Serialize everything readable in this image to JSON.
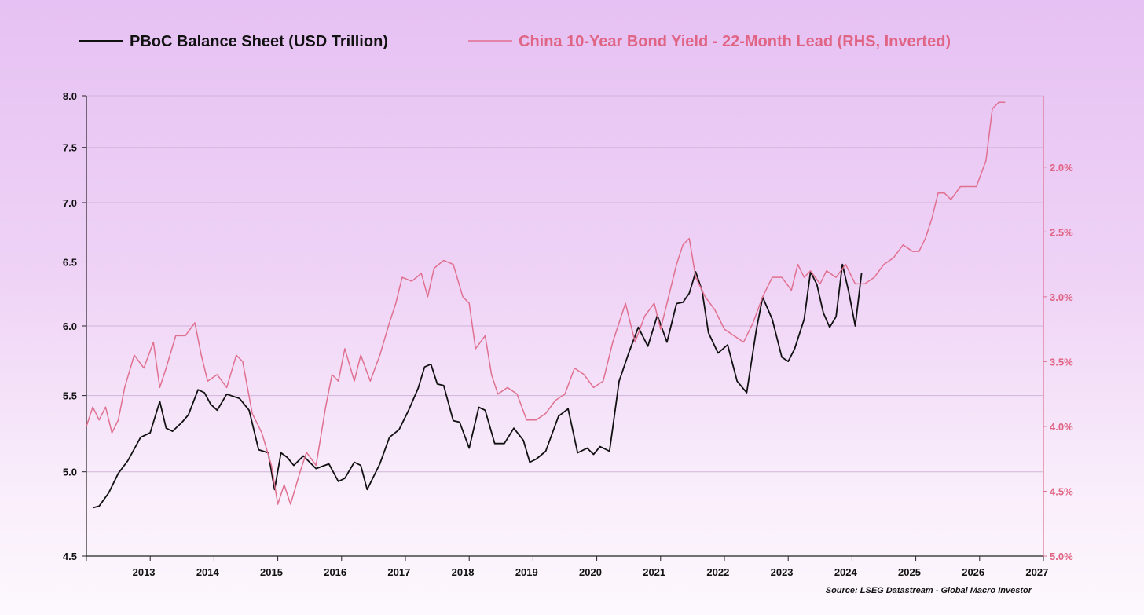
{
  "chart_data": {
    "type": "line",
    "title": "",
    "source": "Source: LSEG Datastream - Global Macro Investor",
    "grid": true,
    "legend_placement": "top",
    "x_axis": {
      "ticks": [
        "2013",
        "2014",
        "2015",
        "2016",
        "2017",
        "2018",
        "2019",
        "2020",
        "2021",
        "2022",
        "2023",
        "2024",
        "2025",
        "2026",
        "2027"
      ],
      "range": [
        2012.6,
        2027.6
      ]
    },
    "y_left": {
      "scale": "log",
      "range": [
        4.5,
        8.0
      ],
      "ticks": [
        "8.0",
        "7.5",
        "7.0",
        "6.5",
        "6.0",
        "5.5",
        "5.0",
        "4.5"
      ],
      "tick_values": [
        8.0,
        7.5,
        7.0,
        6.5,
        6.0,
        5.5,
        5.0,
        4.5
      ]
    },
    "y_right": {
      "inverted": true,
      "range": [
        1.45,
        5.0
      ],
      "ticks": [
        "2.0%",
        "2.5%",
        "3.0%",
        "3.5%",
        "4.0%",
        "4.5%",
        "5.0%"
      ],
      "tick_values": [
        2.0,
        2.5,
        3.0,
        3.5,
        4.0,
        4.5,
        5.0
      ]
    },
    "series": [
      {
        "name": "PBoC Balance Sheet (USD Trillion)",
        "axis": "left",
        "color": "#111111",
        "x": [
          2012.7,
          2012.8,
          2012.95,
          2013.1,
          2013.25,
          2013.45,
          2013.6,
          2013.75,
          2013.85,
          2013.95,
          2014.1,
          2014.2,
          2014.35,
          2014.45,
          2014.55,
          2014.65,
          2014.8,
          2015.0,
          2015.15,
          2015.3,
          2015.45,
          2015.55,
          2015.65,
          2015.75,
          2015.85,
          2016.0,
          2016.2,
          2016.4,
          2016.55,
          2016.65,
          2016.8,
          2016.9,
          2017.0,
          2017.2,
          2017.35,
          2017.5,
          2017.65,
          2017.8,
          2017.9,
          2018.0,
          2018.1,
          2018.2,
          2018.35,
          2018.45,
          2018.6,
          2018.75,
          2018.85,
          2019.0,
          2019.15,
          2019.3,
          2019.45,
          2019.55,
          2019.65,
          2019.8,
          2020.0,
          2020.15,
          2020.3,
          2020.45,
          2020.55,
          2020.65,
          2020.8,
          2020.95,
          2021.1,
          2021.25,
          2021.4,
          2021.55,
          2021.7,
          2021.85,
          2021.95,
          2022.05,
          2022.15,
          2022.25,
          2022.35,
          2022.5,
          2022.65,
          2022.8,
          2022.95,
          2023.1,
          2023.2,
          2023.35,
          2023.5,
          2023.6,
          2023.7,
          2023.85,
          2023.95,
          2024.05,
          2024.15,
          2024.25,
          2024.35,
          2024.45,
          2024.55,
          2024.65,
          2024.75
        ],
        "values": [
          4.78,
          4.79,
          4.87,
          4.99,
          5.07,
          5.22,
          5.25,
          5.46,
          5.28,
          5.26,
          5.32,
          5.37,
          5.54,
          5.52,
          5.44,
          5.4,
          5.51,
          5.48,
          5.4,
          5.14,
          5.12,
          4.89,
          5.12,
          5.09,
          5.04,
          5.1,
          5.02,
          5.05,
          4.94,
          4.96,
          5.06,
          5.04,
          4.89,
          5.05,
          5.22,
          5.27,
          5.4,
          5.55,
          5.7,
          5.72,
          5.58,
          5.57,
          5.33,
          5.32,
          5.15,
          5.42,
          5.4,
          5.18,
          5.18,
          5.28,
          5.2,
          5.06,
          5.08,
          5.13,
          5.36,
          5.41,
          5.12,
          5.15,
          5.11,
          5.16,
          5.13,
          5.6,
          5.8,
          5.99,
          5.85,
          6.08,
          5.88,
          6.17,
          6.18,
          6.25,
          6.42,
          6.27,
          5.95,
          5.8,
          5.86,
          5.6,
          5.52,
          5.97,
          6.22,
          6.05,
          5.77,
          5.74,
          5.83,
          6.05,
          6.42,
          6.32,
          6.1,
          5.99,
          6.07,
          6.48,
          6.26,
          6.0,
          6.41
        ]
      },
      {
        "name": "China 10-Year Bond Yield - 22-Month Lead (RHS, Inverted)",
        "axis": "right",
        "color": "#e07090",
        "x": [
          2012.6,
          2012.7,
          2012.8,
          2012.9,
          2013.0,
          2013.1,
          2013.2,
          2013.35,
          2013.5,
          2013.65,
          2013.75,
          2013.85,
          2014.0,
          2014.15,
          2014.3,
          2014.4,
          2014.5,
          2014.65,
          2014.8,
          2014.95,
          2015.05,
          2015.2,
          2015.35,
          2015.5,
          2015.6,
          2015.7,
          2015.8,
          2015.95,
          2016.05,
          2016.2,
          2016.35,
          2016.45,
          2016.55,
          2016.65,
          2016.8,
          2016.9,
          2017.05,
          2017.2,
          2017.35,
          2017.45,
          2017.55,
          2017.7,
          2017.85,
          2017.95,
          2018.05,
          2018.2,
          2018.35,
          2018.5,
          2018.6,
          2018.7,
          2018.85,
          2018.95,
          2019.05,
          2019.2,
          2019.35,
          2019.5,
          2019.65,
          2019.8,
          2019.95,
          2020.1,
          2020.25,
          2020.4,
          2020.55,
          2020.7,
          2020.85,
          2020.95,
          2021.05,
          2021.2,
          2021.35,
          2021.5,
          2021.6,
          2021.75,
          2021.85,
          2021.95,
          2022.05,
          2022.15,
          2022.3,
          2022.45,
          2022.6,
          2022.75,
          2022.9,
          2023.05,
          2023.2,
          2023.35,
          2023.5,
          2023.65,
          2023.75,
          2023.85,
          2023.95,
          2024.1,
          2024.2,
          2024.35,
          2024.5,
          2024.65,
          2024.8,
          2024.95,
          2025.1,
          2025.25,
          2025.4,
          2025.55,
          2025.65,
          2025.75,
          2025.85,
          2025.95,
          2026.05,
          2026.15,
          2026.3,
          2026.4,
          2026.55,
          2026.7,
          2026.8,
          2026.9,
          2026.95,
          2027.0
        ],
        "values": [
          4.0,
          3.85,
          3.95,
          3.85,
          4.05,
          3.95,
          3.7,
          3.45,
          3.55,
          3.35,
          3.7,
          3.55,
          3.3,
          3.3,
          3.2,
          3.45,
          3.65,
          3.6,
          3.7,
          3.45,
          3.5,
          3.9,
          4.05,
          4.3,
          4.6,
          4.45,
          4.6,
          4.35,
          4.2,
          4.3,
          3.85,
          3.6,
          3.65,
          3.4,
          3.65,
          3.45,
          3.65,
          3.45,
          3.2,
          3.05,
          2.85,
          2.88,
          2.82,
          3.0,
          2.78,
          2.72,
          2.75,
          3.0,
          3.05,
          3.4,
          3.3,
          3.6,
          3.75,
          3.7,
          3.75,
          3.95,
          3.95,
          3.9,
          3.8,
          3.75,
          3.55,
          3.6,
          3.7,
          3.65,
          3.35,
          3.2,
          3.05,
          3.35,
          3.15,
          3.05,
          3.25,
          2.95,
          2.75,
          2.6,
          2.55,
          2.85,
          3.0,
          3.1,
          3.25,
          3.3,
          3.35,
          3.2,
          3.0,
          2.85,
          2.85,
          2.95,
          2.75,
          2.85,
          2.8,
          2.9,
          2.8,
          2.85,
          2.75,
          2.9,
          2.9,
          2.85,
          2.75,
          2.7,
          2.6,
          2.65,
          2.65,
          2.55,
          2.4,
          2.2,
          2.2,
          2.25,
          2.15,
          2.15,
          2.15,
          1.95,
          1.55,
          1.5,
          1.5,
          1.5
        ]
      }
    ]
  }
}
